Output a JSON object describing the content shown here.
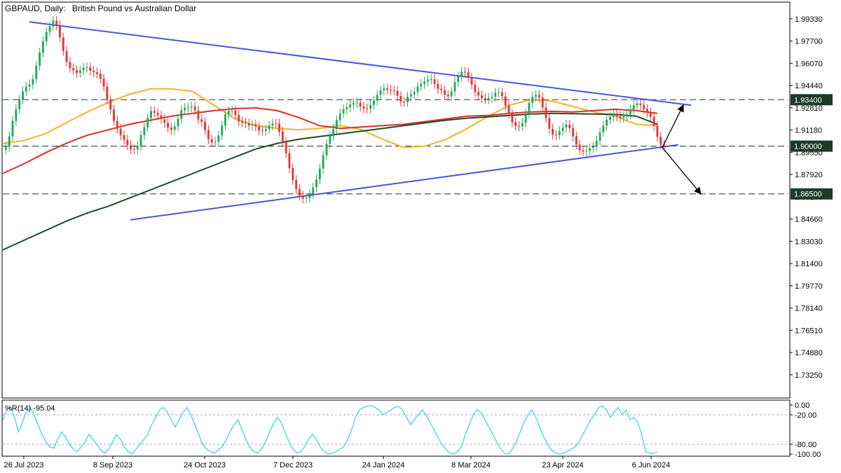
{
  "header": {
    "symbol": "GBPAUD, Daily:",
    "description": "British Pound vs Australian Dollar"
  },
  "colors": {
    "bull": "#26a65b",
    "bear": "#e5343a",
    "ma_fast": "#f0b429",
    "ma_mid": "#d93025",
    "ma_slow": "#1e4d2b",
    "trendline": "#4b55d6",
    "oscillator": "#35d0e0",
    "level_bg": "#1b3b2a"
  },
  "chart_data": [
    {
      "type": "candlestick",
      "title": "GBPAUD, Daily:  British Pound vs Australian Dollar",
      "ylim": [
        1.7165,
        2.005
      ],
      "y_ticks": [
        "1.99330",
        "1.97700",
        "1.96070",
        "1.94440",
        "1.92810",
        "1.91180",
        "1.89550",
        "1.87920",
        "1.86290",
        "1.84660",
        "1.83030",
        "1.81400",
        "1.79770",
        "1.78140",
        "1.76510",
        "1.74880",
        "1.73250"
      ],
      "x_ticks": [
        "26 Jul 2023",
        "8 Sep 2023",
        "24 Oct 2023",
        "7 Dec 2023",
        "24 Jan 2024",
        "8 Mar 2024",
        "23 Apr 2024",
        "6 Jun 2024"
      ],
      "closes": [
        1.8995,
        1.9072,
        1.9184,
        1.9271,
        1.9343,
        1.9401,
        1.9436,
        1.9452,
        1.9491,
        1.9589,
        1.9686,
        1.9768,
        1.9838,
        1.9877,
        1.9919,
        1.9886,
        1.9797,
        1.9697,
        1.9617,
        1.9572,
        1.9556,
        1.9536,
        1.9555,
        1.9575,
        1.9578,
        1.9552,
        1.9541,
        1.953,
        1.9494,
        1.9436,
        1.934,
        1.9269,
        1.9185,
        1.9128,
        1.9079,
        1.9047,
        1.9007,
        1.8977,
        1.8976,
        1.9003,
        1.9081,
        1.9138,
        1.9206,
        1.9257,
        1.9244,
        1.9225,
        1.9197,
        1.9171,
        1.9136,
        1.912,
        1.9145,
        1.92,
        1.9263,
        1.9281,
        1.9284,
        1.929,
        1.9262,
        1.9196,
        1.9178,
        1.9119,
        1.905,
        1.9027,
        1.9031,
        1.9078,
        1.9151,
        1.9232,
        1.9258,
        1.9262,
        1.9227,
        1.9181,
        1.9173,
        1.9167,
        1.9151,
        1.916,
        1.9143,
        1.9115,
        1.9111,
        1.9124,
        1.9151,
        1.9166,
        1.9165,
        1.9107,
        1.9028,
        1.8948,
        1.8838,
        1.8752,
        1.8685,
        1.8637,
        1.8616,
        1.862,
        1.8649,
        1.8698,
        1.8756,
        1.8836,
        1.8933,
        1.9017,
        1.9073,
        1.9126,
        1.919,
        1.924,
        1.927,
        1.9286,
        1.9305,
        1.9315,
        1.9319,
        1.9291,
        1.9276,
        1.9275,
        1.9302,
        1.9335,
        1.9375,
        1.9408,
        1.9423,
        1.9413,
        1.9409,
        1.9406,
        1.9367,
        1.9326,
        1.9322,
        1.9363,
        1.938,
        1.9396,
        1.9436,
        1.9455,
        1.9474,
        1.9488,
        1.949,
        1.9455,
        1.942,
        1.9409,
        1.9376,
        1.9364,
        1.94,
        1.947,
        1.951,
        1.9545,
        1.9541,
        1.9502,
        1.9451,
        1.9397,
        1.9371,
        1.9351,
        1.9344,
        1.9353,
        1.9363,
        1.9391,
        1.9394,
        1.9365,
        1.9297,
        1.9237,
        1.9175,
        1.9148,
        1.9144,
        1.9171,
        1.9237,
        1.9316,
        1.9362,
        1.9375,
        1.9357,
        1.9283,
        1.9205,
        1.9127,
        1.9085,
        1.908,
        1.9111,
        1.9136,
        1.9157,
        1.9131,
        1.9072,
        1.9011,
        1.897,
        1.8961,
        1.8966,
        1.8985,
        1.8997,
        1.904,
        1.9102,
        1.915,
        1.9194,
        1.9214,
        1.9232,
        1.9219,
        1.9207,
        1.9218,
        1.9233,
        1.9268,
        1.9299,
        1.9313,
        1.9301,
        1.9273,
        1.9246,
        1.9215,
        1.9148,
        1.9068,
        1.901,
        1.8995
      ],
      "overlays": [
        {
          "name": "MA fast",
          "values": [
            1.902,
            1.904,
            1.909,
            1.917,
            1.925,
            1.932,
            1.938,
            1.942,
            1.942,
            1.94,
            1.93,
            1.92,
            1.915,
            1.913,
            1.912,
            1.913,
            1.915,
            1.912,
            1.905,
            1.899,
            1.9,
            1.905,
            1.913,
            1.922,
            1.93,
            1.934,
            1.933,
            1.929,
            1.925,
            1.922,
            1.916,
            1.915
          ]
        },
        {
          "name": "MA mid",
          "values": [
            1.88,
            1.887,
            1.895,
            1.902,
            1.908,
            1.912,
            1.916,
            1.919,
            1.922,
            1.924,
            1.926,
            1.9275,
            1.928,
            1.926,
            1.921,
            1.915,
            1.913,
            1.914,
            1.915,
            1.916,
            1.918,
            1.92,
            1.922,
            1.9225,
            1.924,
            1.925,
            1.9255,
            1.925,
            1.926,
            1.927,
            1.926,
            1.924
          ]
        },
        {
          "name": "MA slow",
          "values": [
            1.824,
            1.831,
            1.838,
            1.845,
            1.851,
            1.856,
            1.862,
            1.868,
            1.874,
            1.88,
            1.886,
            1.892,
            1.898,
            1.902,
            1.905,
            1.907,
            1.909,
            1.911,
            1.913,
            1.915,
            1.917,
            1.919,
            1.9205,
            1.9215,
            1.9225,
            1.9235,
            1.924,
            1.9238,
            1.9235,
            1.9232,
            1.922,
            1.916
          ]
        }
      ],
      "levels": [
        "1.93400",
        "1.90000",
        "1.86500"
      ],
      "trendlines": [
        {
          "from": [
            "26 Jul 2023",
            1.991
          ],
          "to": [
            "6 Jun 2024",
            1.93
          ]
        },
        {
          "from": [
            "8 Sep 2023",
            1.846
          ],
          "to": [
            "6 Jun 2024",
            1.901
          ]
        }
      ],
      "scenario_arrows": [
        {
          "from": 1.899,
          "to": 1.93
        },
        {
          "from": 1.899,
          "to": 1.865
        }
      ]
    },
    {
      "type": "line",
      "title": "%R(14) -95.04",
      "ylim": [
        -100,
        0
      ],
      "y_ticks": [
        "0.00",
        "-20.00",
        "-80.00",
        "-100.00"
      ],
      "reference_lines": [
        -20,
        -80
      ],
      "values": [
        -30,
        -10,
        -5,
        -25,
        -55,
        -35,
        -15,
        -5,
        -20,
        -40,
        -60,
        -75,
        -85,
        -88,
        -70,
        -55,
        -65,
        -80,
        -90,
        -95,
        -85,
        -75,
        -60,
        -70,
        -80,
        -92,
        -98,
        -90,
        -75,
        -60,
        -70,
        -85,
        -95,
        -100,
        -90,
        -80,
        -70,
        -60,
        -40,
        -25,
        -10,
        -5,
        -15,
        -30,
        -45,
        -30,
        -15,
        -5,
        -20,
        -40,
        -60,
        -80,
        -90,
        -95,
        -98,
        -92,
        -85,
        -70,
        -55,
        -40,
        -30,
        -50,
        -70,
        -85,
        -95,
        -98,
        -90,
        -75,
        -55,
        -40,
        -25,
        -35,
        -55,
        -75,
        -90,
        -98,
        -95,
        -85,
        -70,
        -60,
        -70,
        -85,
        -95,
        -100,
        -98,
        -95,
        -90,
        -85,
        -70,
        -50,
        -25,
        -10,
        -5,
        -2,
        -1,
        -5,
        -10,
        -20,
        -15,
        -10,
        -5,
        -3,
        -10,
        -25,
        -40,
        -30,
        -20,
        -10,
        -20,
        -35,
        -50,
        -65,
        -80,
        -90,
        -98,
        -100,
        -95,
        -85,
        -60,
        -40,
        -20,
        -10,
        -15,
        -30,
        -45,
        -60,
        -75,
        -90,
        -98,
        -100,
        -90,
        -75,
        -55,
        -35,
        -20,
        -10,
        -25,
        -45,
        -65,
        -80,
        -92,
        -98,
        -100,
        -98,
        -95,
        -90,
        -85,
        -75,
        -60,
        -45,
        -30,
        -20,
        -5,
        -2,
        -10,
        -25,
        -15,
        -5,
        -20,
        -10,
        -30,
        -25,
        -35,
        -60,
        -95,
        -98,
        -99,
        -95.04
      ]
    }
  ]
}
